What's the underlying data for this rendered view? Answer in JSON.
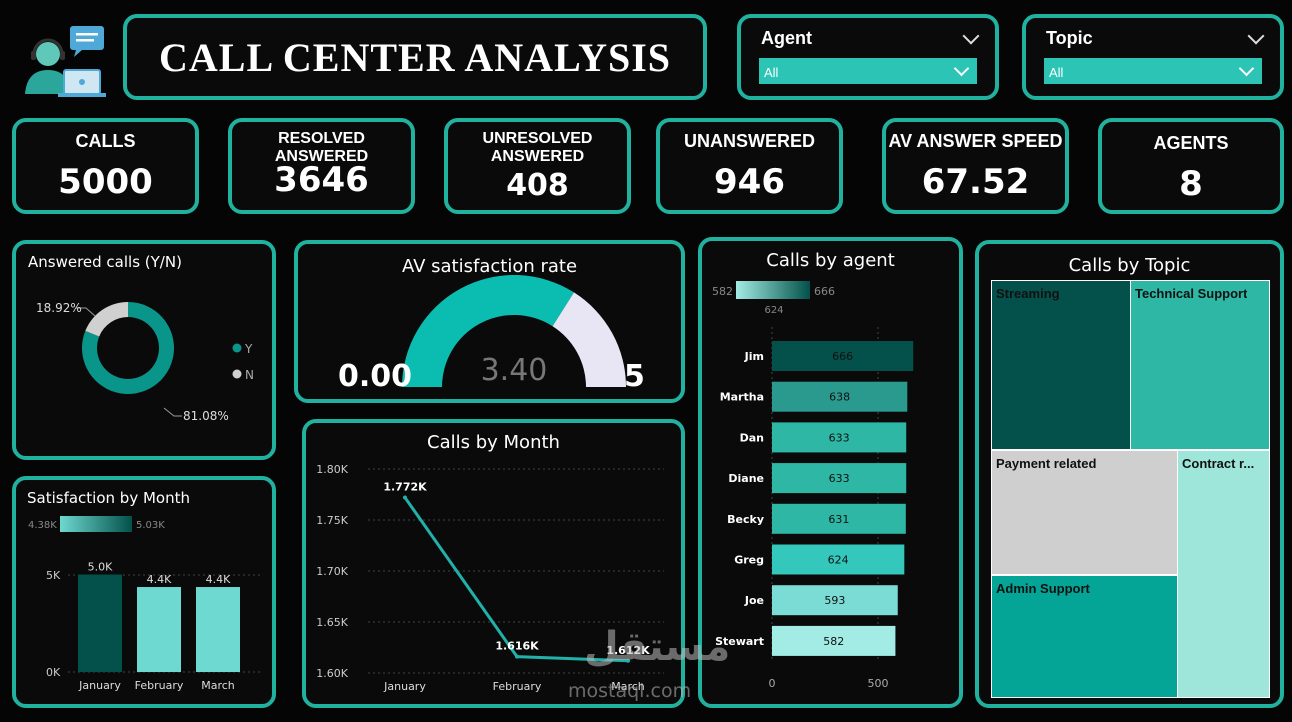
{
  "header": {
    "title": "CALL CENTER ANALYSIS",
    "watermark_arabic": "مستقل",
    "watermark_latin": "mostaql.com"
  },
  "slicers": {
    "agent": {
      "label": "Agent",
      "value": "All"
    },
    "topic": {
      "label": "Topic",
      "value": "All"
    }
  },
  "kpis": [
    {
      "label": "CALLS",
      "value": "5000"
    },
    {
      "label": "RESOLVED ANSWERED",
      "value": "3646"
    },
    {
      "label": "UNRESOLVED ANSWERED",
      "value": "408"
    },
    {
      "label": "UNANSWERED",
      "value": "946"
    },
    {
      "label": "AV ANSWER SPEED",
      "value": "67.52"
    },
    {
      "label": "AGENTS",
      "value": "8"
    }
  ],
  "colors": {
    "accent": "#20b29f",
    "dark_teal": "#03514a",
    "teal": "#0a958a",
    "light_teal": "#6ed9d0",
    "gray": "#cfcfcf",
    "gauge_fill": "#0bbdb1",
    "gauge_rest": "#e8e6f5"
  },
  "chart_data": [
    {
      "type": "pie",
      "title": "Answered calls (Y/N)",
      "categories": [
        "Y",
        "N"
      ],
      "values": [
        81.08,
        18.92
      ],
      "labels": [
        "81.08%",
        "18.92%"
      ],
      "colors": [
        "#0a958a",
        "#d0d0d0"
      ],
      "legend": "right"
    },
    {
      "type": "gauge",
      "title": "AV satisfaction rate",
      "min": 0,
      "max": 5,
      "value": 3.4,
      "min_label": "0.00",
      "max_label": "5",
      "value_label": "3.40"
    },
    {
      "type": "bar",
      "title": "Satisfaction by Month",
      "categories": [
        "January",
        "February",
        "March"
      ],
      "values": [
        5030,
        4380,
        4380
      ],
      "data_labels": [
        "5.0K",
        "4.4K",
        "4.4K"
      ],
      "ylim": [
        0,
        5000
      ],
      "yticks": [
        "0K",
        "5K"
      ],
      "color_scale": {
        "min_label": "4.38K",
        "max_label": "5.03K"
      },
      "grid": true
    },
    {
      "type": "line",
      "title": "Calls by Month",
      "categories": [
        "January",
        "February",
        "March"
      ],
      "values": [
        1772,
        1616,
        1612
      ],
      "data_labels": [
        "1.772K",
        "1.616K",
        "1.612K"
      ],
      "ylim": [
        1600,
        1800
      ],
      "yticks": [
        "1.60K",
        "1.65K",
        "1.70K",
        "1.75K",
        "1.80K"
      ],
      "grid": true
    },
    {
      "type": "bar",
      "orientation": "horizontal",
      "title": "Calls by agent",
      "categories": [
        "Jim",
        "Martha",
        "Dan",
        "Diane",
        "Becky",
        "Greg",
        "Joe",
        "Stewart"
      ],
      "values": [
        666,
        638,
        633,
        633,
        631,
        624,
        593,
        582
      ],
      "xlim": [
        0,
        750
      ],
      "xticks": [
        "0",
        "500"
      ],
      "color_scale": {
        "min_label": "582",
        "mid_label": "624",
        "max_label": "666"
      },
      "grid": true
    },
    {
      "type": "treemap",
      "title": "Calls by Topic",
      "categories": [
        "Streaming",
        "Technical Support",
        "Payment related",
        "Admin Support",
        "Contract r..."
      ]
    }
  ]
}
